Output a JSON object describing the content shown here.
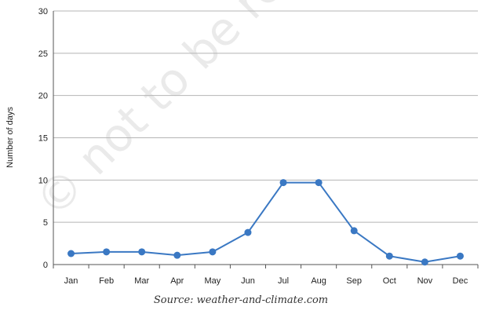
{
  "watermark": "© not to be re",
  "chart_data": {
    "type": "line",
    "categories": [
      "Jan",
      "Feb",
      "Mar",
      "Apr",
      "May",
      "Jun",
      "Jul",
      "Aug",
      "Sep",
      "Oct",
      "Nov",
      "Dec"
    ],
    "series": [
      {
        "values": [
          1.3,
          1.5,
          1.5,
          1.1,
          1.5,
          3.8,
          9.7,
          9.7,
          4.0,
          1.0,
          0.3,
          1.0
        ]
      }
    ],
    "ylabel": "Number of days",
    "xlabel": "",
    "ylim": [
      0,
      30
    ],
    "yticks": [
      0,
      5,
      10,
      15,
      20,
      25,
      30
    ],
    "grid": true,
    "line_color": "#3a78c3",
    "marker_color": "#3a78c3",
    "grid_color": "#b5b5b5",
    "source": "Source: weather-and-climate.com"
  }
}
